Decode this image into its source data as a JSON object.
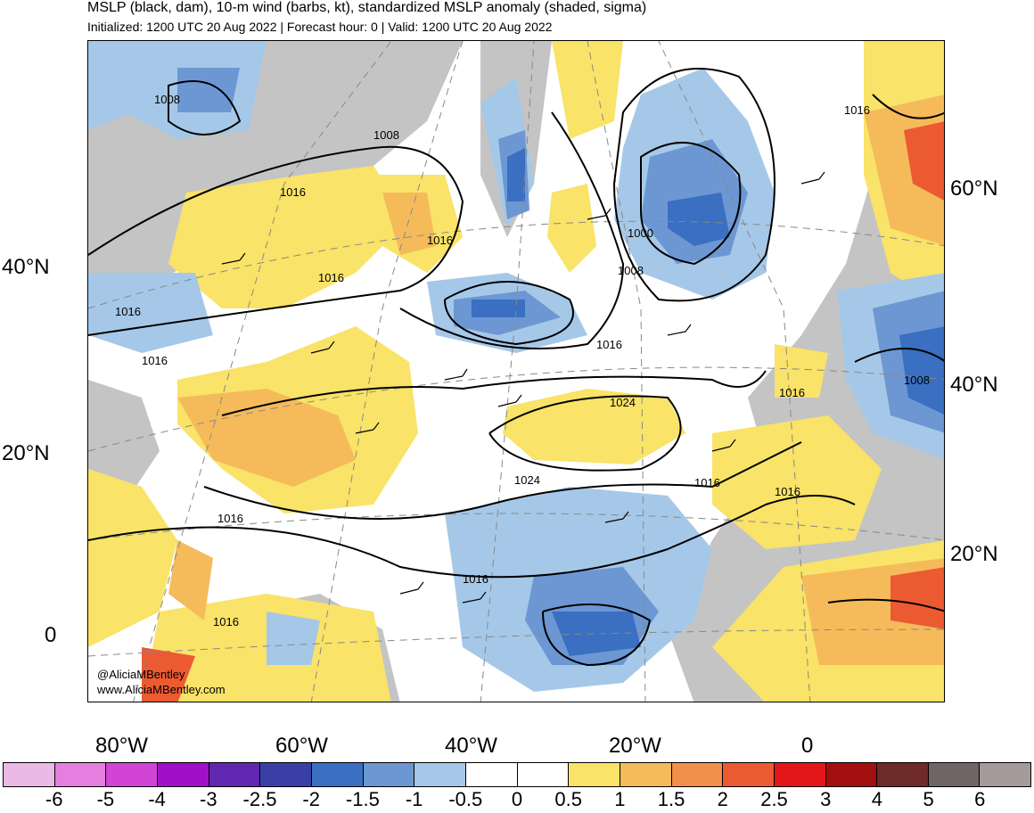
{
  "header": {
    "title": "MSLP (black, dam), 10-m wind (barbs, kt), standardized MSLP anomaly (shaded, sigma)",
    "subtitle": "Initialized: 1200 UTC 20 Aug 2022 | Forecast hour: 0 | Valid: 1200 UTC 20 Aug 2022"
  },
  "map": {
    "lat_labels_left": [
      "40°N",
      "20°N",
      "0"
    ],
    "lat_labels_right": [
      "60°N",
      "40°N",
      "20°N"
    ],
    "lon_labels": [
      "80°W",
      "60°W",
      "40°W",
      "20°W",
      "0"
    ],
    "isobar_labels": [
      "1008",
      "1008",
      "1016",
      "1016",
      "1016",
      "1016",
      "1016",
      "1000",
      "1008",
      "1016",
      "1024",
      "1024",
      "1016",
      "1016",
      "1016",
      "1016",
      "1016",
      "1016",
      "1008",
      "1016"
    ],
    "credits": [
      "@AliciaMBentley",
      "www.AliciaMBentley.com"
    ]
  },
  "colorbar": {
    "ticks": [
      "-6",
      "-5",
      "-4",
      "-3",
      "-2.5",
      "-2",
      "-1.5",
      "-1",
      "-0.5",
      "0",
      "0.5",
      "1",
      "1.5",
      "2",
      "2.5",
      "3",
      "4",
      "5",
      "6"
    ],
    "colors": [
      "#ebb9e6",
      "#e47fe0",
      "#d244d6",
      "#a20fc8",
      "#6028b0",
      "#3a3fa6",
      "#3a6fc2",
      "#6c97d3",
      "#a6c8e8",
      "#ffffff",
      "#ffffff",
      "#f9e368",
      "#f5bb5a",
      "#f1904a",
      "#ec5a32",
      "#e3171a",
      "#a30f0f",
      "#6f2a2a",
      "#6f6565",
      "#a59b9b"
    ]
  },
  "colors": {
    "land_gray": "#c4c4c4",
    "pos_anom_1": "#f9e368",
    "pos_anom_2": "#f5bb5a",
    "neg_anom_1": "#a6c8e8",
    "neg_anom_2": "#6c97d3",
    "neg_anom_3": "#3a6fc2"
  }
}
